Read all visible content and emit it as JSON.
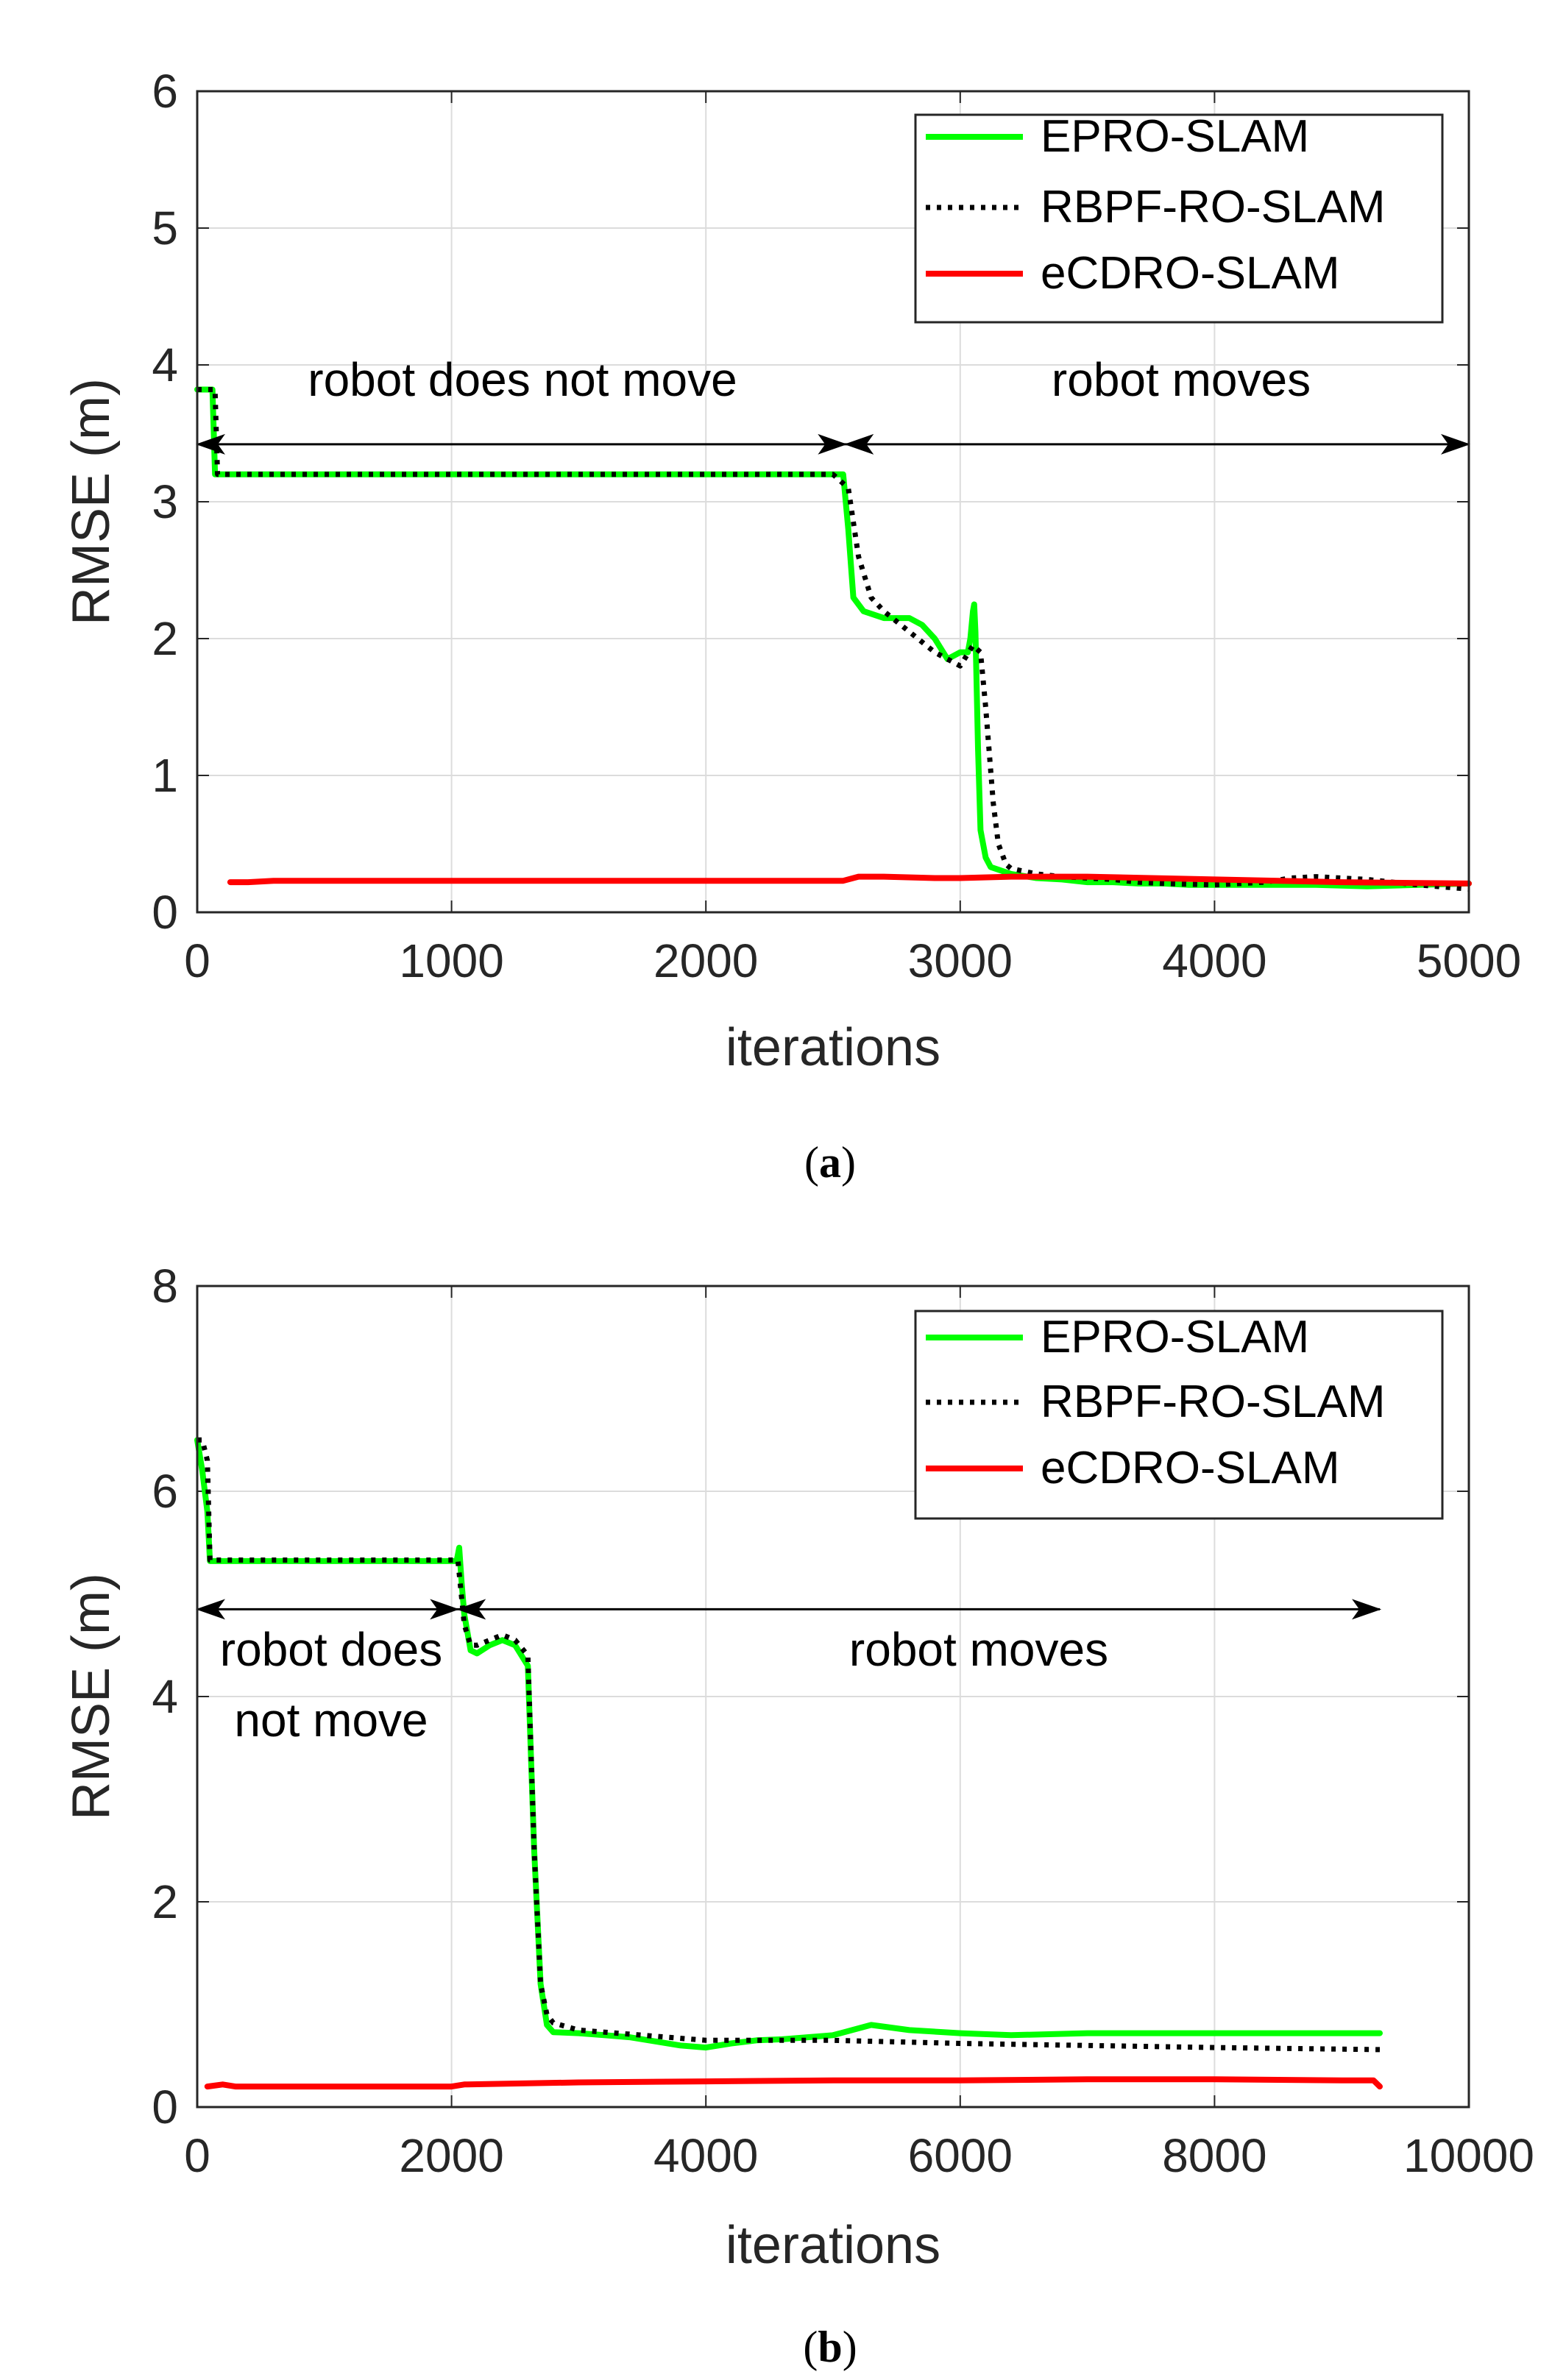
{
  "chart_data": [
    {
      "type": "line",
      "xlabel": "iterations",
      "ylabel": "RMSE (m)",
      "xlim": [
        0,
        5000
      ],
      "ylim": [
        0,
        6
      ],
      "xticks": [
        "0",
        "1000",
        "2000",
        "3000",
        "4000",
        "5000"
      ],
      "yticks": [
        "0",
        "1",
        "2",
        "3",
        "4",
        "5",
        "6"
      ],
      "grid": true,
      "legend_position": "top-right",
      "caption_letter": "a",
      "annotations": [
        {
          "text": "robot does not move",
          "from": 0,
          "to": 2550,
          "y": 3.42
        },
        {
          "text": "robot moves",
          "from": 2550,
          "to": 5000,
          "y": 3.42
        }
      ],
      "series": [
        {
          "name": "EPRO-SLAM",
          "color": "#00ff00",
          "style": "solid",
          "x": [
            0,
            60,
            70,
            2500,
            2540,
            2560,
            2580,
            2620,
            2700,
            2800,
            2850,
            2900,
            2950,
            3000,
            3030,
            3040,
            3050,
            3055,
            3060,
            3070,
            3080,
            3100,
            3120,
            3200,
            3300,
            3400,
            3500,
            3600,
            3700,
            3800,
            3900,
            4000,
            4200,
            4400,
            4600,
            4800,
            5000
          ],
          "y": [
            3.82,
            3.82,
            3.2,
            3.2,
            3.2,
            2.8,
            2.3,
            2.2,
            2.15,
            2.15,
            2.1,
            2.0,
            1.85,
            1.9,
            1.9,
            2.0,
            2.2,
            2.25,
            2.05,
            1.2,
            0.6,
            0.4,
            0.33,
            0.28,
            0.25,
            0.24,
            0.22,
            0.22,
            0.21,
            0.21,
            0.2,
            0.2,
            0.2,
            0.2,
            0.19,
            0.2,
            0.21
          ]
        },
        {
          "name": "RBPF-RO-SLAM",
          "color": "#000000",
          "style": "dotted",
          "x": [
            0,
            70,
            80,
            2500,
            2560,
            2600,
            2650,
            2700,
            2800,
            2900,
            3000,
            3050,
            3080,
            3100,
            3130,
            3150,
            3180,
            3200,
            3300,
            3400,
            3500,
            3600,
            3700,
            3800,
            4000,
            4200,
            4300,
            4400,
            4600,
            4800,
            5000
          ],
          "y": [
            3.82,
            3.82,
            3.2,
            3.2,
            3.1,
            2.6,
            2.3,
            2.2,
            2.05,
            1.9,
            1.8,
            1.95,
            1.9,
            1.5,
            0.8,
            0.5,
            0.35,
            0.32,
            0.28,
            0.26,
            0.25,
            0.24,
            0.22,
            0.21,
            0.2,
            0.22,
            0.25,
            0.26,
            0.24,
            0.2,
            0.17
          ]
        },
        {
          "name": "eCDRO-SLAM",
          "color": "#ff0000",
          "style": "solid",
          "x": [
            130,
            200,
            300,
            1000,
            2000,
            2540,
            2600,
            2700,
            2900,
            3000,
            3200,
            3500,
            4000,
            4500,
            5000
          ],
          "y": [
            0.22,
            0.22,
            0.23,
            0.23,
            0.23,
            0.23,
            0.26,
            0.26,
            0.25,
            0.25,
            0.26,
            0.26,
            0.24,
            0.22,
            0.21
          ]
        }
      ]
    },
    {
      "type": "line",
      "xlabel": "iterations",
      "ylabel": "RMSE (m)",
      "xlim": [
        0,
        10000
      ],
      "ylim": [
        0,
        8
      ],
      "xticks": [
        "0",
        "2000",
        "4000",
        "6000",
        "8000",
        "10000"
      ],
      "yticks": [
        "0",
        "2",
        "4",
        "6",
        "8"
      ],
      "grid": true,
      "legend_position": "top-right",
      "caption_letter": "b",
      "annotations": [
        {
          "text_lines": [
            "robot does",
            "not move"
          ],
          "from": 0,
          "to": 2050,
          "y": 4.85
        },
        {
          "text_lines": [
            "robot moves"
          ],
          "from": 2050,
          "to": 9300,
          "y": 4.85
        }
      ],
      "series": [
        {
          "name": "EPRO-SLAM",
          "color": "#00ff00",
          "style": "solid",
          "x": [
            0,
            40,
            80,
            100,
            2000,
            2040,
            2060,
            2080,
            2100,
            2150,
            2200,
            2300,
            2400,
            2500,
            2600,
            2650,
            2700,
            2750,
            2800,
            3000,
            3200,
            3400,
            3600,
            3800,
            4000,
            4200,
            4400,
            4600,
            4800,
            5000,
            5300,
            5600,
            6000,
            6400,
            7000,
            8000,
            9300
          ],
          "y": [
            6.5,
            6.2,
            5.8,
            5.32,
            5.32,
            5.32,
            5.45,
            5.1,
            4.8,
            4.45,
            4.42,
            4.5,
            4.55,
            4.5,
            4.3,
            2.5,
            1.2,
            0.8,
            0.73,
            0.72,
            0.7,
            0.68,
            0.64,
            0.6,
            0.58,
            0.62,
            0.65,
            0.66,
            0.68,
            0.7,
            0.8,
            0.75,
            0.72,
            0.7,
            0.72,
            0.72,
            0.72
          ]
        },
        {
          "name": "RBPF-RO-SLAM",
          "color": "#000000",
          "style": "dotted",
          "x": [
            0,
            40,
            80,
            100,
            2000,
            2050,
            2100,
            2150,
            2200,
            2300,
            2400,
            2500,
            2600,
            2650,
            2700,
            2750,
            2800,
            3000,
            3500,
            4000,
            4500,
            5000,
            6000,
            7000,
            8000,
            9300
          ],
          "y": [
            6.5,
            6.5,
            6.3,
            5.33,
            5.33,
            5.33,
            4.7,
            4.5,
            4.5,
            4.55,
            4.6,
            4.55,
            4.4,
            2.5,
            1.2,
            0.9,
            0.82,
            0.75,
            0.7,
            0.65,
            0.65,
            0.65,
            0.62,
            0.6,
            0.58,
            0.56
          ]
        },
        {
          "name": "eCDRO-SLAM",
          "color": "#ff0000",
          "style": "solid",
          "x": [
            80,
            200,
            300,
            1000,
            2000,
            2100,
            3000,
            4000,
            5000,
            6000,
            7000,
            8000,
            9000,
            9250,
            9300
          ],
          "y": [
            0.2,
            0.22,
            0.2,
            0.2,
            0.2,
            0.22,
            0.24,
            0.25,
            0.26,
            0.26,
            0.27,
            0.27,
            0.26,
            0.26,
            0.2
          ]
        }
      ]
    }
  ]
}
